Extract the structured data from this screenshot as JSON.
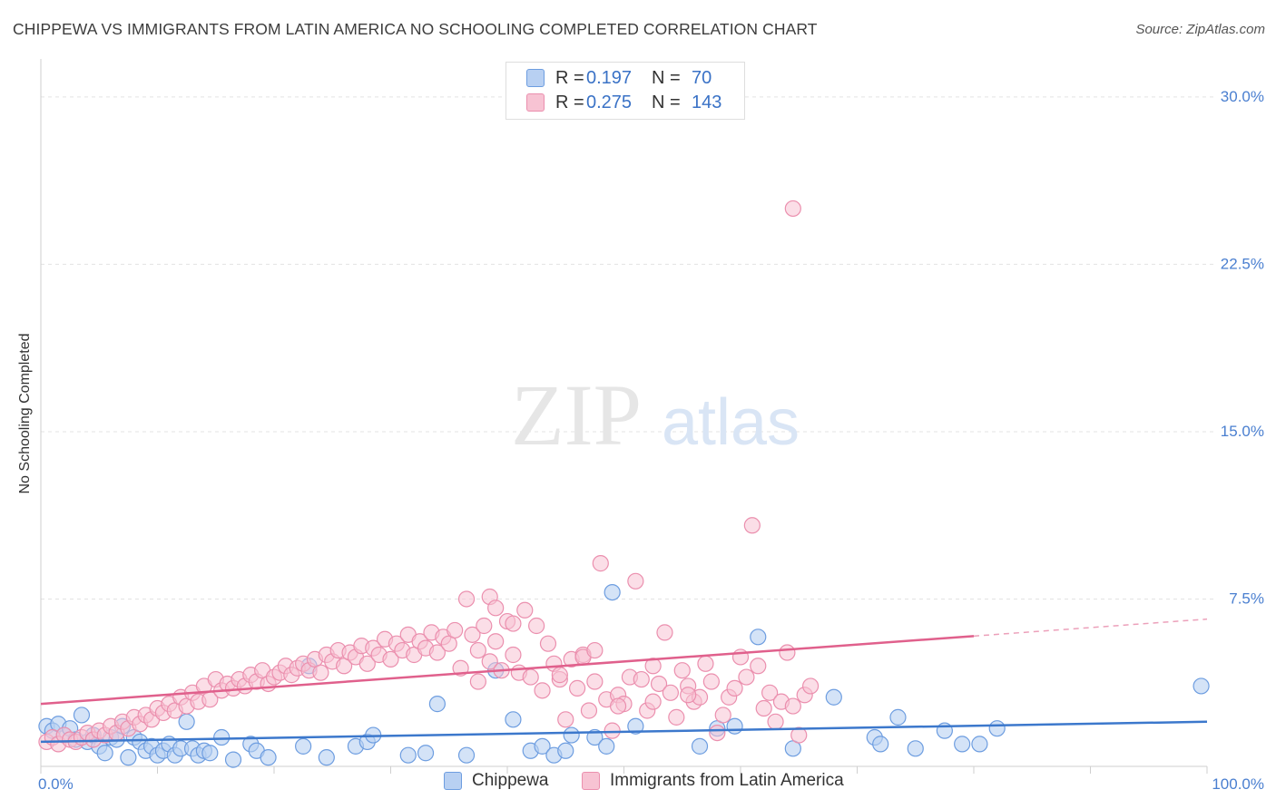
{
  "header": {
    "title": "CHIPPEWA VS IMMIGRANTS FROM LATIN AMERICA NO SCHOOLING COMPLETED CORRELATION CHART",
    "source": "Source: ZipAtlas.com"
  },
  "watermark": {
    "zip": "ZIP",
    "atlas": "atlas"
  },
  "legend_top": {
    "rows": [
      {
        "r_label": "R =",
        "r_value": "0.197",
        "n_label": "N =",
        "n_value": "70"
      },
      {
        "r_label": "R =",
        "r_value": "0.275",
        "n_label": "N =",
        "n_value": "143"
      }
    ]
  },
  "legend_bottom": {
    "items": [
      {
        "label": "Chippewa"
      },
      {
        "label": "Immigrants from Latin America"
      }
    ]
  },
  "colors": {
    "blue_fill": "#b8d0f2",
    "blue_stroke": "#6d9de0",
    "blue_line": "#3c78cc",
    "pink_fill": "#f7c3d3",
    "pink_stroke": "#eb8fae",
    "pink_line": "#e0608c",
    "tick_label": "#4a7fd0",
    "grid": "#e3e3e3"
  },
  "chart_data": {
    "type": "scatter",
    "title": "CHIPPEWA VS IMMIGRANTS FROM LATIN AMERICA NO SCHOOLING COMPLETED CORRELATION CHART",
    "xlabel": "",
    "ylabel": "No Schooling Completed",
    "xlim": [
      0,
      100
    ],
    "ylim": [
      0,
      31.5
    ],
    "x_tick_labels": [
      {
        "value": 0,
        "label": "0.0%"
      },
      {
        "value": 100,
        "label": "100.0%"
      }
    ],
    "y_tick_labels": [
      {
        "value": 7.5,
        "label": "7.5%"
      },
      {
        "value": 15.0,
        "label": "15.0%"
      },
      {
        "value": 22.5,
        "label": "22.5%"
      },
      {
        "value": 30.0,
        "label": "30.0%"
      }
    ],
    "grid": "horizontal-dashed",
    "legend_position": "top-center and bottom",
    "series": [
      {
        "name": "Chippewa",
        "r": 0.197,
        "n": 70,
        "trend": {
          "x": [
            0,
            100
          ],
          "y": [
            1.1,
            2.0
          ]
        },
        "points": [
          [
            0.5,
            1.8
          ],
          [
            1.0,
            1.6
          ],
          [
            1.5,
            1.9
          ],
          [
            2.0,
            1.4
          ],
          [
            2.5,
            1.7
          ],
          [
            3.0,
            1.2
          ],
          [
            3.5,
            2.3
          ],
          [
            4.0,
            1.1
          ],
          [
            4.5,
            1.4
          ],
          [
            5.0,
            0.9
          ],
          [
            5.5,
            0.6
          ],
          [
            6.0,
            1.3
          ],
          [
            6.5,
            1.2
          ],
          [
            7.0,
            1.8
          ],
          [
            7.5,
            0.4
          ],
          [
            8.0,
            1.3
          ],
          [
            8.5,
            1.1
          ],
          [
            9.0,
            0.7
          ],
          [
            9.5,
            0.9
          ],
          [
            10.0,
            0.5
          ],
          [
            10.5,
            0.7
          ],
          [
            11.0,
            1.0
          ],
          [
            11.5,
            0.5
          ],
          [
            12.0,
            0.8
          ],
          [
            12.5,
            2.0
          ],
          [
            13.0,
            0.8
          ],
          [
            13.5,
            0.5
          ],
          [
            14.0,
            0.7
          ],
          [
            14.5,
            0.6
          ],
          [
            15.5,
            1.3
          ],
          [
            16.5,
            0.3
          ],
          [
            18.0,
            1.0
          ],
          [
            18.5,
            0.7
          ],
          [
            19.5,
            0.4
          ],
          [
            22.5,
            0.9
          ],
          [
            23.0,
            4.5
          ],
          [
            24.5,
            0.4
          ],
          [
            27.0,
            0.9
          ],
          [
            28.0,
            1.1
          ],
          [
            28.5,
            1.4
          ],
          [
            31.5,
            0.5
          ],
          [
            33.0,
            0.6
          ],
          [
            34.0,
            2.8
          ],
          [
            36.5,
            0.5
          ],
          [
            39.0,
            4.3
          ],
          [
            40.5,
            2.1
          ],
          [
            42.0,
            0.7
          ],
          [
            43.0,
            0.9
          ],
          [
            44.0,
            0.5
          ],
          [
            45.0,
            0.7
          ],
          [
            47.5,
            1.3
          ],
          [
            48.5,
            0.9
          ],
          [
            49.0,
            7.8
          ],
          [
            51.0,
            1.8
          ],
          [
            56.5,
            0.9
          ],
          [
            58.0,
            1.7
          ],
          [
            59.5,
            1.8
          ],
          [
            61.5,
            5.8
          ],
          [
            64.5,
            0.8
          ],
          [
            68.0,
            3.1
          ],
          [
            71.5,
            1.3
          ],
          [
            72.0,
            1.0
          ],
          [
            73.5,
            2.2
          ],
          [
            75.0,
            0.8
          ],
          [
            77.5,
            1.6
          ],
          [
            79.0,
            1.0
          ],
          [
            80.5,
            1.0
          ],
          [
            82.0,
            1.7
          ],
          [
            99.5,
            3.6
          ],
          [
            45.5,
            1.4
          ]
        ]
      },
      {
        "name": "Immigrants from Latin America",
        "r": 0.275,
        "n": 143,
        "trend": {
          "x": [
            0,
            100
          ],
          "y": [
            2.8,
            6.6
          ]
        },
        "trend_solid_to_x": 80,
        "points": [
          [
            0.5,
            1.1
          ],
          [
            1.0,
            1.3
          ],
          [
            1.5,
            1.0
          ],
          [
            2.0,
            1.4
          ],
          [
            2.5,
            1.2
          ],
          [
            3.0,
            1.1
          ],
          [
            3.5,
            1.3
          ],
          [
            4.0,
            1.5
          ],
          [
            4.5,
            1.2
          ],
          [
            5.0,
            1.6
          ],
          [
            5.5,
            1.4
          ],
          [
            6.0,
            1.8
          ],
          [
            6.5,
            1.5
          ],
          [
            7.0,
            2.0
          ],
          [
            7.5,
            1.7
          ],
          [
            8.0,
            2.2
          ],
          [
            8.5,
            1.9
          ],
          [
            9.0,
            2.3
          ],
          [
            9.5,
            2.1
          ],
          [
            10.0,
            2.6
          ],
          [
            10.5,
            2.4
          ],
          [
            11.0,
            2.8
          ],
          [
            11.5,
            2.5
          ],
          [
            12.0,
            3.1
          ],
          [
            12.5,
            2.7
          ],
          [
            13.0,
            3.3
          ],
          [
            13.5,
            2.9
          ],
          [
            14.0,
            3.6
          ],
          [
            14.5,
            3.0
          ],
          [
            15.0,
            3.9
          ],
          [
            15.5,
            3.4
          ],
          [
            16.0,
            3.7
          ],
          [
            16.5,
            3.5
          ],
          [
            17.0,
            3.9
          ],
          [
            17.5,
            3.6
          ],
          [
            18.0,
            4.1
          ],
          [
            18.5,
            3.8
          ],
          [
            19.0,
            4.3
          ],
          [
            19.5,
            3.7
          ],
          [
            20.0,
            4.0
          ],
          [
            20.5,
            4.2
          ],
          [
            21.0,
            4.5
          ],
          [
            21.5,
            4.1
          ],
          [
            22.0,
            4.4
          ],
          [
            22.5,
            4.6
          ],
          [
            23.0,
            4.3
          ],
          [
            23.5,
            4.8
          ],
          [
            24.0,
            4.2
          ],
          [
            24.5,
            5.0
          ],
          [
            25.0,
            4.7
          ],
          [
            25.5,
            5.2
          ],
          [
            26.0,
            4.5
          ],
          [
            26.5,
            5.1
          ],
          [
            27.0,
            4.9
          ],
          [
            27.5,
            5.4
          ],
          [
            28.0,
            4.6
          ],
          [
            28.5,
            5.3
          ],
          [
            29.0,
            5.0
          ],
          [
            29.5,
            5.7
          ],
          [
            30.0,
            4.8
          ],
          [
            30.5,
            5.5
          ],
          [
            31.0,
            5.2
          ],
          [
            31.5,
            5.9
          ],
          [
            32.0,
            5.0
          ],
          [
            32.5,
            5.6
          ],
          [
            33.0,
            5.3
          ],
          [
            33.5,
            6.0
          ],
          [
            34.0,
            5.1
          ],
          [
            34.5,
            5.8
          ],
          [
            35.0,
            5.5
          ],
          [
            35.5,
            6.1
          ],
          [
            36.0,
            4.4
          ],
          [
            37.0,
            5.9
          ],
          [
            37.5,
            5.2
          ],
          [
            38.0,
            6.3
          ],
          [
            38.5,
            4.7
          ],
          [
            39.0,
            5.6
          ],
          [
            39.5,
            4.3
          ],
          [
            40.0,
            6.5
          ],
          [
            40.5,
            5.0
          ],
          [
            41.0,
            4.2
          ],
          [
            41.5,
            7.0
          ],
          [
            42.0,
            4.0
          ],
          [
            42.5,
            6.3
          ],
          [
            43.0,
            3.4
          ],
          [
            43.5,
            5.5
          ],
          [
            44.0,
            4.6
          ],
          [
            44.5,
            3.9
          ],
          [
            45.0,
            2.1
          ],
          [
            45.5,
            4.8
          ],
          [
            46.0,
            3.5
          ],
          [
            46.5,
            5.0
          ],
          [
            47.0,
            2.5
          ],
          [
            47.5,
            3.8
          ],
          [
            48.0,
            9.1
          ],
          [
            48.5,
            3.0
          ],
          [
            49.0,
            1.6
          ],
          [
            49.5,
            3.2
          ],
          [
            50.0,
            2.8
          ],
          [
            50.5,
            4.0
          ],
          [
            51.0,
            8.3
          ],
          [
            51.5,
            3.9
          ],
          [
            52.0,
            2.5
          ],
          [
            52.5,
            2.9
          ],
          [
            53.0,
            3.7
          ],
          [
            53.5,
            6.0
          ],
          [
            54.0,
            3.3
          ],
          [
            54.5,
            2.2
          ],
          [
            55.0,
            4.3
          ],
          [
            55.5,
            3.6
          ],
          [
            56.0,
            2.9
          ],
          [
            56.5,
            3.1
          ],
          [
            57.0,
            4.6
          ],
          [
            57.5,
            3.8
          ],
          [
            58.0,
            1.5
          ],
          [
            58.5,
            2.3
          ],
          [
            59.0,
            3.1
          ],
          [
            59.5,
            3.5
          ],
          [
            60.0,
            4.9
          ],
          [
            60.5,
            4.0
          ],
          [
            61.0,
            10.8
          ],
          [
            61.5,
            4.5
          ],
          [
            62.0,
            2.6
          ],
          [
            62.5,
            3.3
          ],
          [
            63.0,
            2.0
          ],
          [
            63.5,
            2.9
          ],
          [
            64.0,
            5.1
          ],
          [
            64.5,
            2.7
          ],
          [
            65.0,
            1.4
          ],
          [
            65.5,
            3.2
          ],
          [
            66.0,
            3.6
          ],
          [
            36.5,
            7.5
          ],
          [
            37.5,
            3.8
          ],
          [
            38.5,
            7.6
          ],
          [
            39.0,
            7.1
          ],
          [
            40.5,
            6.4
          ],
          [
            44.5,
            4.1
          ],
          [
            46.5,
            4.9
          ],
          [
            47.5,
            5.2
          ],
          [
            49.5,
            2.7
          ],
          [
            52.5,
            4.5
          ],
          [
            55.5,
            3.2
          ],
          [
            64.5,
            25.0
          ]
        ]
      }
    ]
  }
}
